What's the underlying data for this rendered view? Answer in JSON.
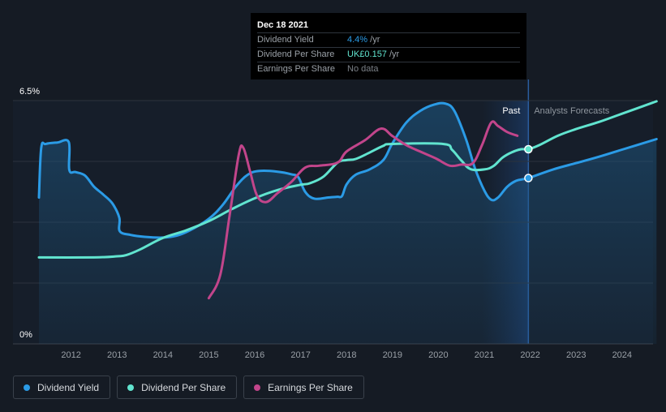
{
  "tooltip": {
    "date": "Dec 18 2021",
    "rows": [
      {
        "label": "Dividend Yield",
        "value": "4.4%",
        "suffix": " /yr"
      },
      {
        "label": "Dividend Per Share",
        "value": "UK£0.157",
        "suffix": " /yr"
      },
      {
        "label": "Earnings Per Share",
        "value": "No data",
        "suffix": ""
      }
    ]
  },
  "legend": [
    {
      "label": "Dividend Yield",
      "color": "#2b9be6"
    },
    {
      "label": "Dividend Per Share",
      "color": "#61e4cf"
    },
    {
      "label": "Earnings Per Share",
      "color": "#c2458b"
    }
  ],
  "chart_data": {
    "type": "line",
    "y_max_label": "6.5%",
    "y_min_label": "0%",
    "ylim": [
      0,
      6.5
    ],
    "xlim": [
      2011.3,
      2024.75
    ],
    "x_ticks": [
      "2012",
      "2013",
      "2014",
      "2015",
      "2016",
      "2017",
      "2018",
      "2019",
      "2020",
      "2021",
      "2022",
      "2023",
      "2024"
    ],
    "past_label": "Past",
    "forecast_label": "Analysts Forecasts",
    "past_start": 2020.95,
    "divider": 2021.96,
    "grid": true,
    "series": [
      {
        "name": "Dividend Yield",
        "color": "#2b9be6",
        "filled": true,
        "points": [
          [
            2011.3,
            3.91
          ],
          [
            2011.35,
            5.23
          ],
          [
            2011.45,
            5.34
          ],
          [
            2011.7,
            5.38
          ],
          [
            2011.95,
            5.39
          ],
          [
            2011.96,
            4.65
          ],
          [
            2012.1,
            4.59
          ],
          [
            2012.3,
            4.5
          ],
          [
            2012.5,
            4.2
          ],
          [
            2012.7,
            3.99
          ],
          [
            2012.9,
            3.75
          ],
          [
            2013.05,
            3.37
          ],
          [
            2013.06,
            3.01
          ],
          [
            2013.3,
            2.91
          ],
          [
            2013.6,
            2.86
          ],
          [
            2014.0,
            2.84
          ],
          [
            2014.3,
            2.89
          ],
          [
            2014.6,
            3.04
          ],
          [
            2015.0,
            3.34
          ],
          [
            2015.3,
            3.71
          ],
          [
            2015.6,
            4.22
          ],
          [
            2015.85,
            4.52
          ],
          [
            2016.1,
            4.62
          ],
          [
            2016.5,
            4.6
          ],
          [
            2016.8,
            4.53
          ],
          [
            2016.95,
            4.45
          ],
          [
            2017.1,
            4.06
          ],
          [
            2017.3,
            3.88
          ],
          [
            2017.6,
            3.91
          ],
          [
            2017.8,
            3.93
          ],
          [
            2017.9,
            3.95
          ],
          [
            2018.0,
            4.26
          ],
          [
            2018.2,
            4.52
          ],
          [
            2018.5,
            4.66
          ],
          [
            2018.8,
            4.91
          ],
          [
            2019.0,
            5.36
          ],
          [
            2019.3,
            5.91
          ],
          [
            2019.6,
            6.22
          ],
          [
            2019.9,
            6.39
          ],
          [
            2020.15,
            6.42
          ],
          [
            2020.35,
            6.22
          ],
          [
            2020.6,
            5.47
          ],
          [
            2020.8,
            4.68
          ],
          [
            2021.0,
            4.1
          ],
          [
            2021.15,
            3.85
          ],
          [
            2021.3,
            3.91
          ],
          [
            2021.5,
            4.2
          ],
          [
            2021.7,
            4.36
          ],
          [
            2021.96,
            4.43
          ],
          [
            2022.5,
            4.66
          ],
          [
            2023.0,
            4.83
          ],
          [
            2023.5,
            5.0
          ],
          [
            2024.0,
            5.19
          ],
          [
            2024.75,
            5.47
          ]
        ]
      },
      {
        "name": "Dividend Per Share",
        "color": "#61e4cf",
        "filled": false,
        "points": [
          [
            2011.3,
            2.31
          ],
          [
            2012.5,
            2.31
          ],
          [
            2013.0,
            2.34
          ],
          [
            2013.2,
            2.37
          ],
          [
            2013.5,
            2.52
          ],
          [
            2014.0,
            2.83
          ],
          [
            2014.5,
            3.03
          ],
          [
            2015.0,
            3.28
          ],
          [
            2015.5,
            3.6
          ],
          [
            2016.0,
            3.89
          ],
          [
            2016.5,
            4.11
          ],
          [
            2017.0,
            4.25
          ],
          [
            2017.2,
            4.29
          ],
          [
            2017.5,
            4.47
          ],
          [
            2017.8,
            4.84
          ],
          [
            2018.0,
            4.91
          ],
          [
            2018.2,
            4.94
          ],
          [
            2018.5,
            5.11
          ],
          [
            2018.8,
            5.29
          ],
          [
            2019.0,
            5.34
          ],
          [
            2020.1,
            5.34
          ],
          [
            2020.3,
            5.18
          ],
          [
            2020.5,
            4.9
          ],
          [
            2020.7,
            4.67
          ],
          [
            2021.0,
            4.66
          ],
          [
            2021.2,
            4.75
          ],
          [
            2021.4,
            4.98
          ],
          [
            2021.6,
            5.12
          ],
          [
            2021.8,
            5.2
          ],
          [
            2021.96,
            5.2
          ],
          [
            2022.2,
            5.31
          ],
          [
            2022.6,
            5.56
          ],
          [
            2023.0,
            5.74
          ],
          [
            2023.5,
            5.93
          ],
          [
            2024.0,
            6.15
          ],
          [
            2024.75,
            6.48
          ]
        ]
      },
      {
        "name": "Earnings Per Share",
        "color": "#c2458b",
        "filled": false,
        "points": [
          [
            2015.0,
            1.22
          ],
          [
            2015.25,
            1.85
          ],
          [
            2015.45,
            3.41
          ],
          [
            2015.65,
            5.04
          ],
          [
            2015.75,
            5.24
          ],
          [
            2015.9,
            4.6
          ],
          [
            2016.05,
            3.96
          ],
          [
            2016.25,
            3.79
          ],
          [
            2016.5,
            4.03
          ],
          [
            2016.8,
            4.33
          ],
          [
            2017.1,
            4.71
          ],
          [
            2017.4,
            4.76
          ],
          [
            2017.8,
            4.84
          ],
          [
            2018.0,
            5.14
          ],
          [
            2018.4,
            5.44
          ],
          [
            2018.75,
            5.75
          ],
          [
            2019.0,
            5.55
          ],
          [
            2019.3,
            5.31
          ],
          [
            2019.6,
            5.14
          ],
          [
            2019.95,
            4.95
          ],
          [
            2020.25,
            4.76
          ],
          [
            2020.5,
            4.79
          ],
          [
            2020.75,
            4.83
          ],
          [
            2020.95,
            5.31
          ],
          [
            2021.15,
            5.91
          ],
          [
            2021.3,
            5.82
          ],
          [
            2021.5,
            5.66
          ],
          [
            2021.72,
            5.56
          ]
        ]
      }
    ],
    "markers": [
      {
        "series": "Dividend Per Share",
        "x": 2021.96,
        "y": 5.2
      },
      {
        "series": "Dividend Yield",
        "x": 2021.96,
        "y": 4.43
      }
    ]
  }
}
